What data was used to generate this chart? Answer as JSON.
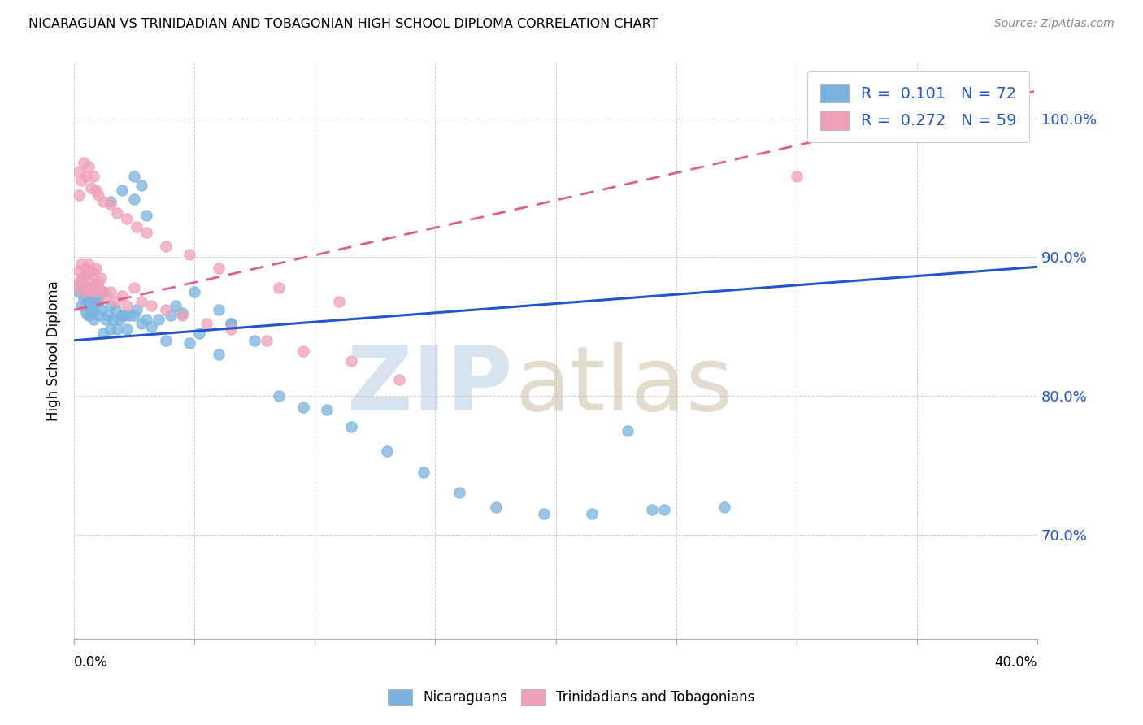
{
  "title": "NICARAGUAN VS TRINIDADIAN AND TOBAGONIAN HIGH SCHOOL DIPLOMA CORRELATION CHART",
  "source": "Source: ZipAtlas.com",
  "ylabel": "High School Diploma",
  "ytick_values": [
    0.7,
    0.8,
    0.9,
    1.0
  ],
  "xlim": [
    0.0,
    0.4
  ],
  "ylim": [
    0.625,
    1.04
  ],
  "legend_r1": "R =  0.101   N = 72",
  "legend_r2": "R =  0.272   N = 59",
  "blue_color": "#7ab3e0",
  "pink_color": "#f0a0b8",
  "trendline_blue": "#2255cc",
  "trendline_pink": "#e06080",
  "blue_trend_x0": 0.0,
  "blue_trend_y0": 0.84,
  "blue_trend_x1": 0.4,
  "blue_trend_y1": 0.893,
  "pink_trend_x0": 0.0,
  "pink_trend_y0": 0.862,
  "pink_trend_x1": 0.4,
  "pink_trend_y1": 1.02,
  "blue_scatter_x": [
    0.002,
    0.003,
    0.003,
    0.004,
    0.004,
    0.005,
    0.005,
    0.005,
    0.006,
    0.006,
    0.007,
    0.007,
    0.008,
    0.008,
    0.009,
    0.009,
    0.01,
    0.01,
    0.011,
    0.012,
    0.012,
    0.013,
    0.014,
    0.015,
    0.015,
    0.016,
    0.017,
    0.018,
    0.019,
    0.02,
    0.021,
    0.022,
    0.023,
    0.025,
    0.026,
    0.028,
    0.03,
    0.032,
    0.035,
    0.038,
    0.04,
    0.042,
    0.045,
    0.048,
    0.052,
    0.06,
    0.065,
    0.075,
    0.085,
    0.095,
    0.105,
    0.115,
    0.13,
    0.145,
    0.16,
    0.175,
    0.195,
    0.215,
    0.24,
    0.27,
    0.015,
    0.02,
    0.025,
    0.025,
    0.028,
    0.03,
    0.05,
    0.06,
    0.065,
    0.23,
    0.245,
    0.375
  ],
  "blue_scatter_y": [
    0.875,
    0.88,
    0.865,
    0.87,
    0.878,
    0.888,
    0.86,
    0.872,
    0.858,
    0.868,
    0.862,
    0.878,
    0.855,
    0.865,
    0.87,
    0.88,
    0.858,
    0.868,
    0.862,
    0.875,
    0.845,
    0.855,
    0.858,
    0.865,
    0.848,
    0.855,
    0.862,
    0.848,
    0.855,
    0.858,
    0.858,
    0.848,
    0.858,
    0.858,
    0.862,
    0.852,
    0.855,
    0.85,
    0.855,
    0.84,
    0.858,
    0.865,
    0.86,
    0.838,
    0.845,
    0.83,
    0.852,
    0.84,
    0.8,
    0.792,
    0.79,
    0.778,
    0.76,
    0.745,
    0.73,
    0.72,
    0.715,
    0.715,
    0.718,
    0.72,
    0.94,
    0.948,
    0.942,
    0.958,
    0.952,
    0.93,
    0.875,
    0.862,
    0.852,
    0.775,
    0.718,
    0.988
  ],
  "pink_scatter_x": [
    0.001,
    0.002,
    0.002,
    0.003,
    0.003,
    0.004,
    0.004,
    0.005,
    0.005,
    0.006,
    0.006,
    0.007,
    0.007,
    0.008,
    0.008,
    0.009,
    0.009,
    0.01,
    0.01,
    0.011,
    0.012,
    0.013,
    0.015,
    0.017,
    0.02,
    0.022,
    0.025,
    0.028,
    0.032,
    0.038,
    0.045,
    0.055,
    0.065,
    0.08,
    0.095,
    0.115,
    0.135,
    0.002,
    0.003,
    0.004,
    0.005,
    0.006,
    0.007,
    0.008,
    0.009,
    0.01,
    0.012,
    0.015,
    0.018,
    0.022,
    0.026,
    0.03,
    0.038,
    0.048,
    0.06,
    0.085,
    0.11,
    0.3,
    0.002
  ],
  "pink_scatter_y": [
    0.878,
    0.882,
    0.89,
    0.885,
    0.895,
    0.875,
    0.885,
    0.878,
    0.892,
    0.882,
    0.895,
    0.878,
    0.89,
    0.875,
    0.888,
    0.878,
    0.892,
    0.882,
    0.878,
    0.885,
    0.875,
    0.872,
    0.875,
    0.868,
    0.872,
    0.865,
    0.878,
    0.868,
    0.865,
    0.862,
    0.858,
    0.852,
    0.848,
    0.84,
    0.832,
    0.825,
    0.812,
    0.962,
    0.955,
    0.968,
    0.958,
    0.965,
    0.95,
    0.958,
    0.948,
    0.945,
    0.94,
    0.938,
    0.932,
    0.928,
    0.922,
    0.918,
    0.908,
    0.902,
    0.892,
    0.878,
    0.868,
    0.958,
    0.945
  ]
}
